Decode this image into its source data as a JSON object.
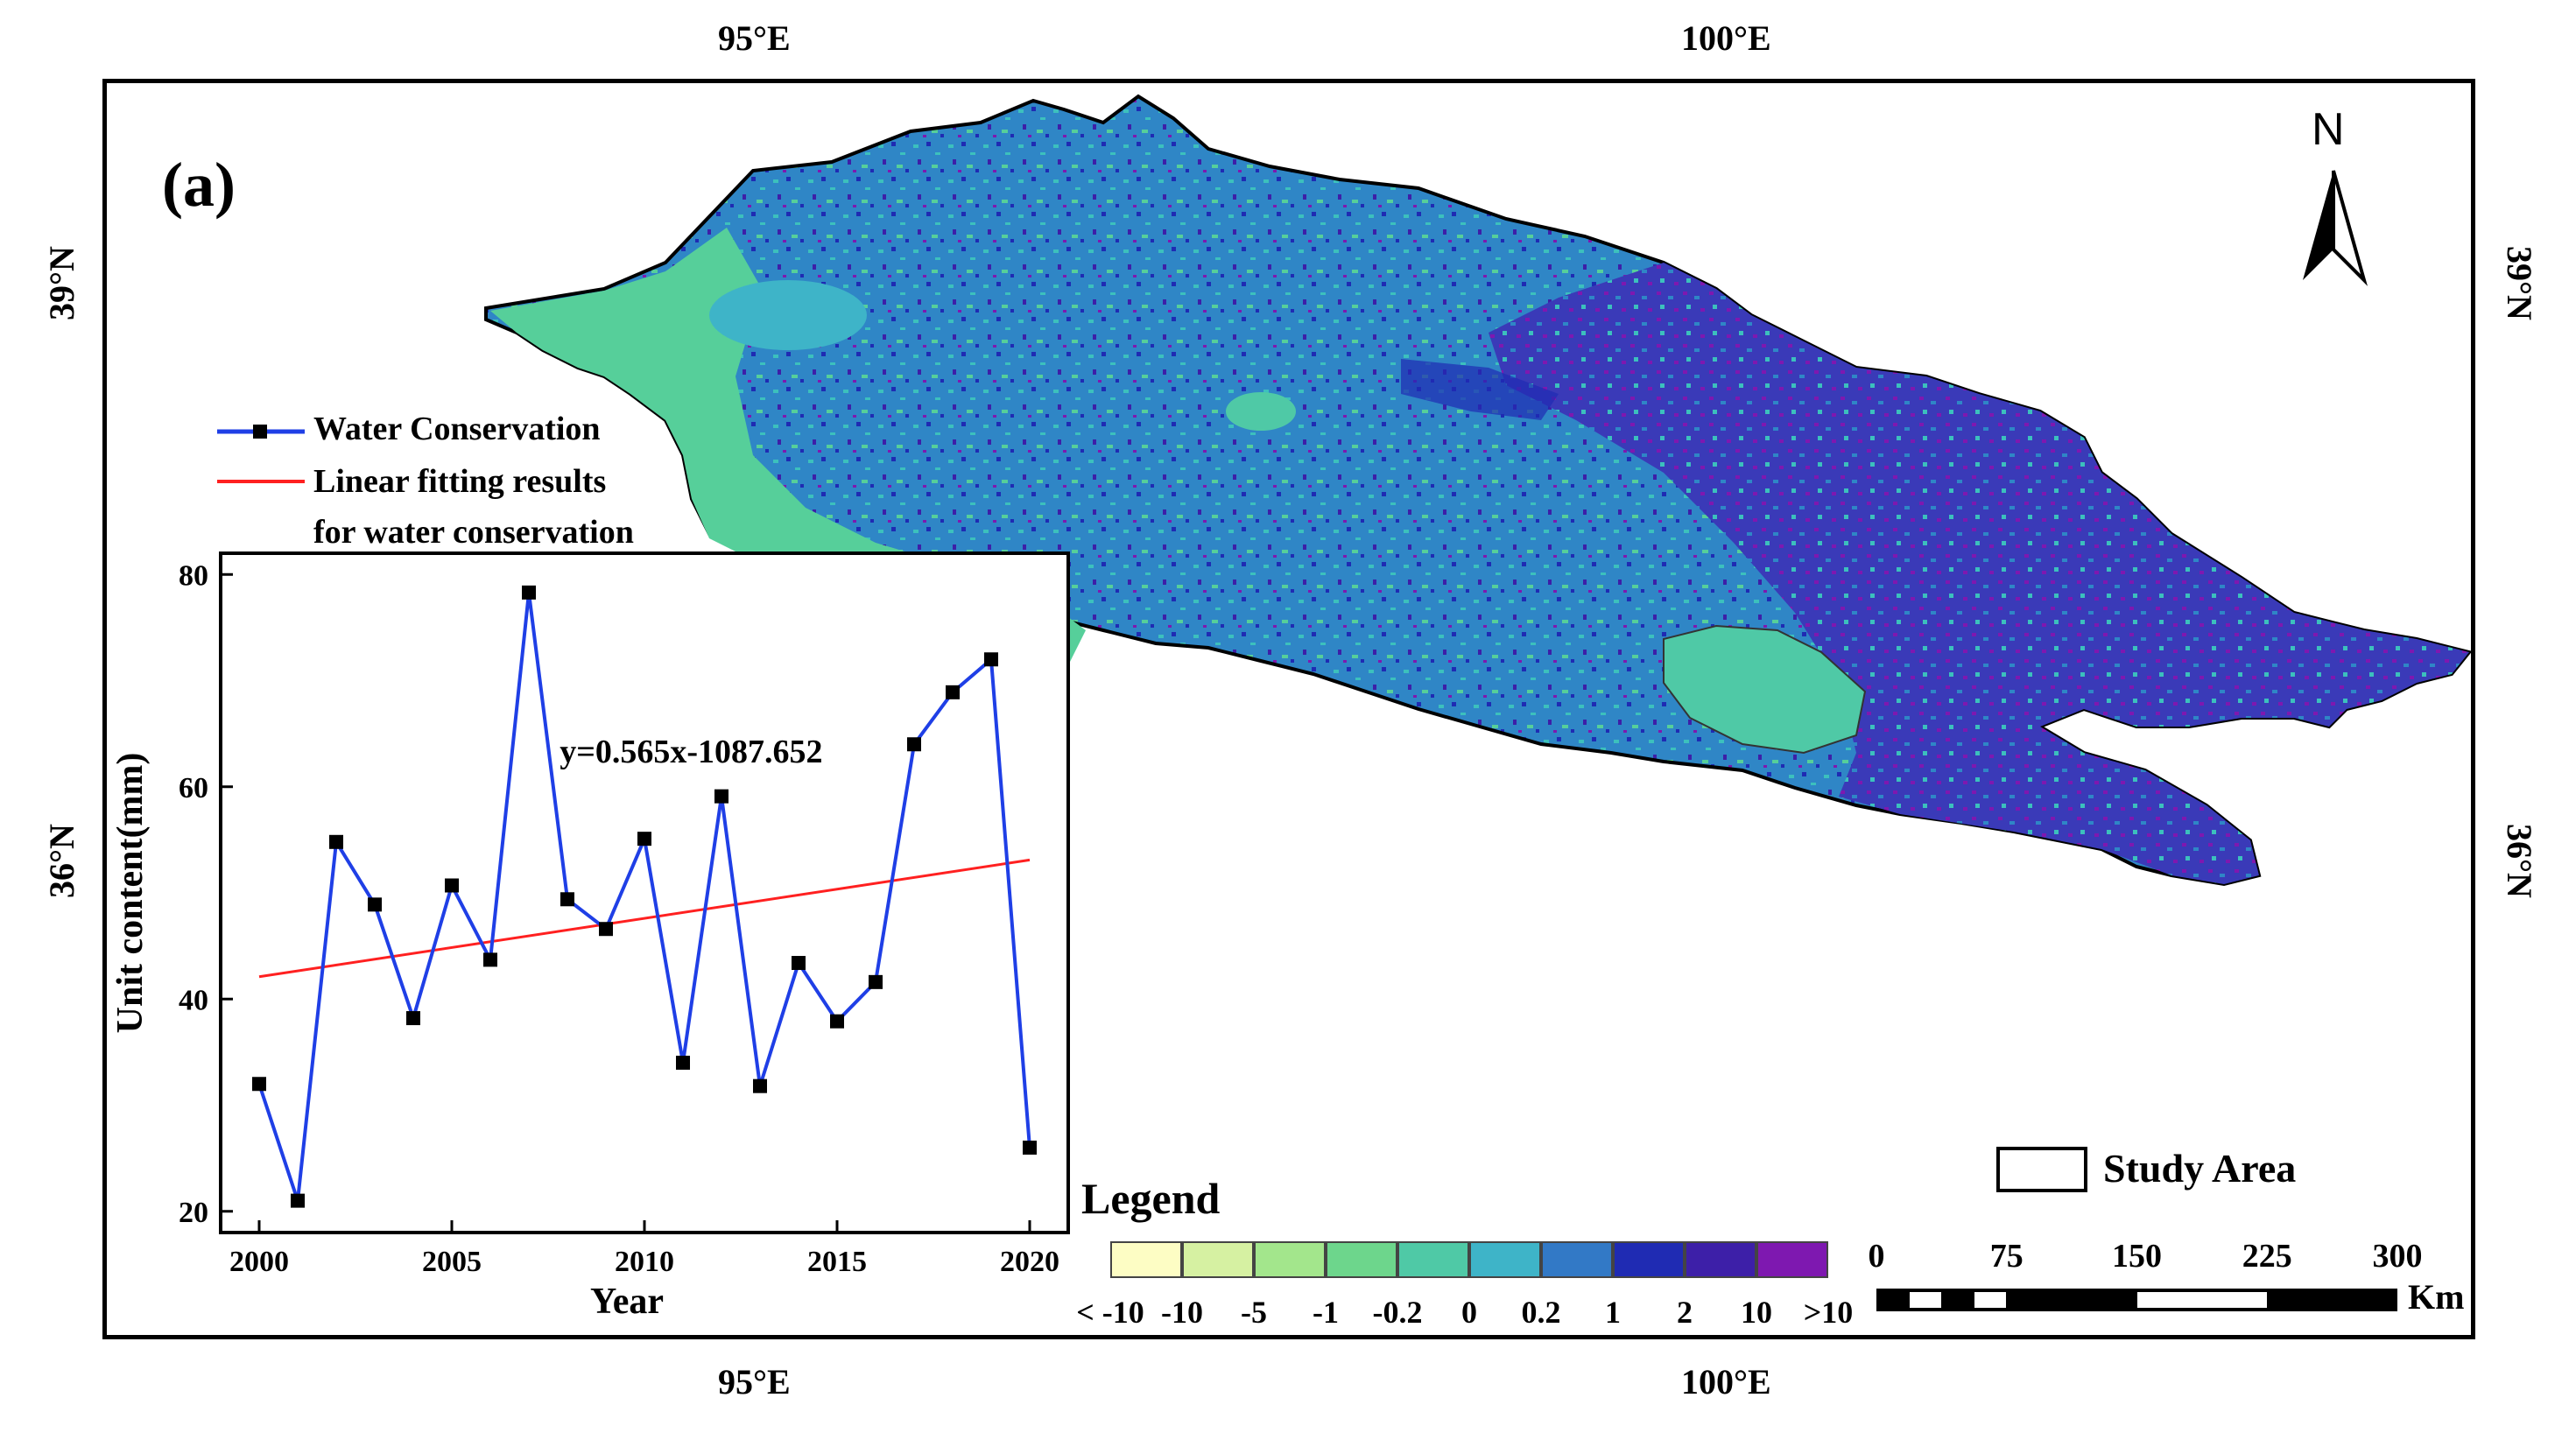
{
  "panel_label": "(a)",
  "coords": {
    "top_lon": [
      "95°E",
      "100°E"
    ],
    "bottom_lon": [
      "95°E",
      "100°E"
    ],
    "left_lat": [
      "39°N",
      "36°N"
    ],
    "right_lat": [
      "39°N",
      "36°N"
    ]
  },
  "north_arrow": {
    "label": "N",
    "icon": "north-arrow-icon"
  },
  "study_area": {
    "label": "Study Area"
  },
  "map_legend": {
    "title": "Legend",
    "colors": [
      "#fdfdc4",
      "#d6f1a2",
      "#a3e68c",
      "#6dd68c",
      "#4fc9a6",
      "#3eb4c8",
      "#3279c6",
      "#1f2bb3",
      "#3d1fa8",
      "#7e18b0"
    ],
    "ticks": [
      "< -10",
      "-10",
      "-5",
      "-1",
      "-0.2",
      "0",
      "0.2",
      "1",
      "2",
      "10",
      ">10"
    ]
  },
  "scale_bar": {
    "ticks": [
      "0",
      "75",
      "150",
      "225",
      "300"
    ],
    "unit": "Km"
  },
  "chart_legend": {
    "series_label": "Water Conservation",
    "fit_label_line1": "Linear fitting results",
    "fit_label_line2": "for water conservation"
  },
  "chart_data": {
    "type": "line",
    "xlabel": "Year",
    "ylabel": "Unit content(mm)",
    "xlim": [
      1999,
      2021
    ],
    "ylim": [
      18,
      82
    ],
    "xticks": [
      2000,
      2005,
      2010,
      2015,
      2020
    ],
    "yticks": [
      20,
      40,
      60,
      80
    ],
    "annotation": "y=0.565x-1087.652",
    "series": [
      {
        "name": "Water Conservation",
        "color": "#1f3fe6",
        "x": [
          2000,
          2001,
          2002,
          2003,
          2004,
          2005,
          2006,
          2007,
          2008,
          2009,
          2010,
          2011,
          2012,
          2013,
          2014,
          2015,
          2016,
          2017,
          2018,
          2019,
          2020
        ],
        "y": [
          32.0,
          21.0,
          54.8,
          48.9,
          38.2,
          50.7,
          43.7,
          78.3,
          49.4,
          46.6,
          55.1,
          34.0,
          59.1,
          31.8,
          43.4,
          37.9,
          41.6,
          64.0,
          68.9,
          72.0,
          26.0
        ]
      },
      {
        "name": "Linear fitting results for water conservation",
        "color": "#ff2020",
        "x": [
          2000,
          2020
        ],
        "y": [
          42.1,
          53.1
        ]
      }
    ]
  }
}
